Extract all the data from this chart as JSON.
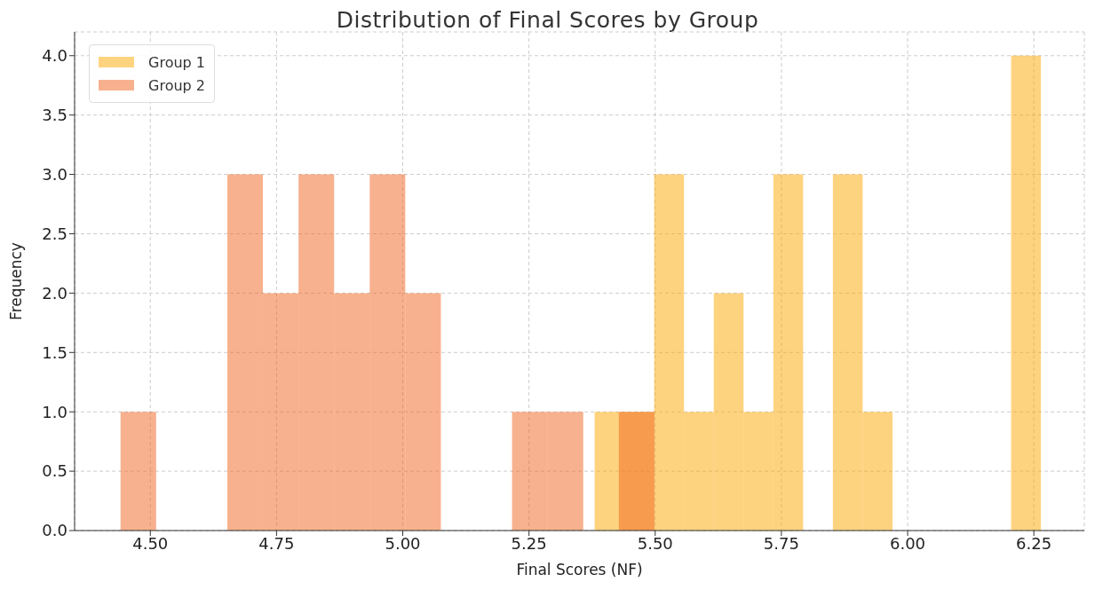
{
  "chart_data": {
    "type": "histogram",
    "title": "Distribution of Final Scores by Group",
    "xlabel": "Final Scores (NF)",
    "ylabel": "Frequency",
    "bins": [
      4.441,
      4.5115,
      4.582,
      4.6525,
      4.723,
      4.7935,
      4.864,
      4.9345,
      5.005,
      5.0755,
      5.146,
      5.2165,
      5.287,
      5.3575,
      5.428,
      5.4985
    ],
    "series": [
      {
        "name": "Group 1",
        "color": "#fed37f",
        "bins": [
          5.38,
          5.439,
          5.498,
          5.557,
          5.616,
          5.675,
          5.734,
          5.793,
          5.852,
          5.911,
          5.97,
          6.205,
          6.264
        ],
        "values": [
          1,
          1,
          3,
          1,
          2,
          1,
          3,
          0,
          3,
          1,
          0,
          4
        ]
      },
      {
        "name": "Group 2",
        "color": "#f7b18e",
        "values": [
          1,
          0,
          0,
          3,
          2,
          3,
          2,
          3,
          2,
          0,
          0,
          1,
          1,
          0,
          1
        ]
      }
    ],
    "xlim": [
      4.35,
      6.35
    ],
    "xticks": [
      {
        "value": 4.5,
        "label": "4.50"
      },
      {
        "value": 4.75,
        "label": "4.75"
      },
      {
        "value": 5,
        "label": "5.00"
      },
      {
        "value": 5.25,
        "label": "5.25"
      },
      {
        "value": 5.5,
        "label": "5.50"
      },
      {
        "value": 5.75,
        "label": "5.75"
      },
      {
        "value": 6,
        "label": "6.00"
      },
      {
        "value": 6.25,
        "label": "6.25"
      }
    ],
    "ylim": [
      0,
      4.2
    ],
    "yticks": [
      {
        "value": 0,
        "label": "0.0"
      },
      {
        "value": 0.5,
        "label": "0.5"
      },
      {
        "value": 1,
        "label": "1.0"
      },
      {
        "value": 1.5,
        "label": "1.5"
      },
      {
        "value": 2,
        "label": "2.0"
      },
      {
        "value": 2.5,
        "label": "2.5"
      },
      {
        "value": 3,
        "label": "3.0"
      },
      {
        "value": 3.5,
        "label": "3.5"
      },
      {
        "value": 4,
        "label": "4.0"
      }
    ],
    "grid": true,
    "legend": "top left"
  }
}
